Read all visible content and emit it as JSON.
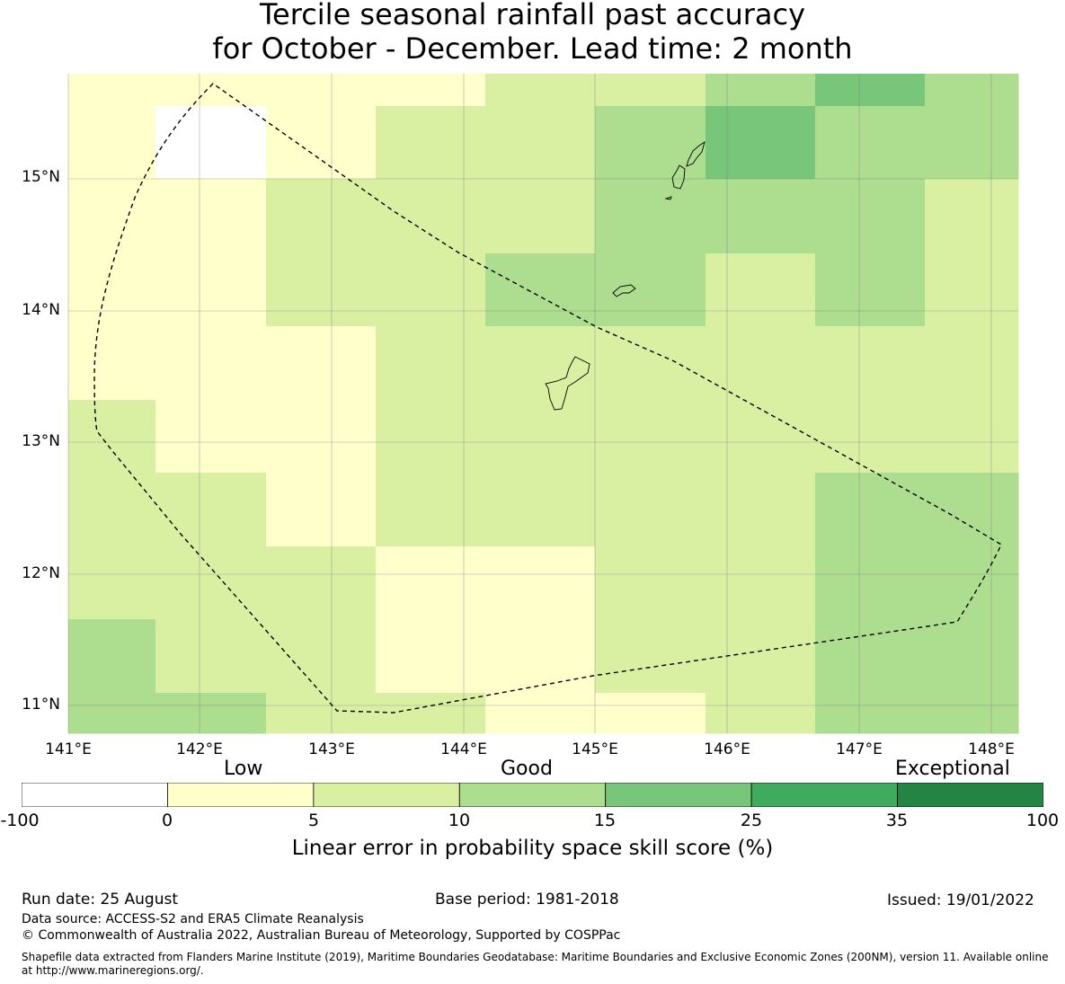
{
  "title": {
    "line1": "Tercile seasonal rainfall past accuracy",
    "line2": "for October - December. Lead time: 2 month"
  },
  "map": {
    "lat_labels": [
      "15°N",
      "14°N",
      "13°N",
      "12°N",
      "11°N"
    ],
    "lon_labels": [
      "141°E",
      "142°E",
      "143°E",
      "144°E",
      "145°E",
      "146°E",
      "147°E",
      "148°E"
    ],
    "lat_values": [
      15,
      14,
      13,
      12,
      11
    ],
    "lon_values": [
      141,
      142,
      143,
      144,
      145,
      146,
      147,
      148
    ],
    "extent": {
      "lon_min": 141.0,
      "lon_max": 148.2,
      "lat_min": 10.8,
      "lat_max": 15.8
    },
    "grid_lines": true,
    "eez_boundary": "dashed black polygon",
    "land_features": [
      "Guam",
      "Rota",
      "Aguijan",
      "Tinian",
      "Saipan"
    ]
  },
  "chart_data": {
    "type": "heatmap",
    "title": "",
    "x": [
      141.33,
      142.17,
      143.0,
      143.83,
      144.67,
      145.5,
      146.33,
      147.17,
      148.0
    ],
    "y": [
      15.67,
      15.28,
      14.72,
      14.17,
      13.61,
      13.06,
      12.5,
      11.94,
      11.39,
      10.96
    ],
    "xlabel": "",
    "ylabel": "",
    "values_class": [
      [
        1,
        1,
        1,
        1,
        2,
        2,
        3,
        4,
        3
      ],
      [
        1,
        0,
        1,
        2,
        2,
        3,
        4,
        3,
        3
      ],
      [
        1,
        1,
        2,
        2,
        2,
        3,
        3,
        3,
        2
      ],
      [
        1,
        1,
        2,
        2,
        3,
        3,
        2,
        3,
        2
      ],
      [
        1,
        1,
        1,
        2,
        2,
        2,
        2,
        2,
        2
      ],
      [
        2,
        1,
        1,
        2,
        2,
        2,
        2,
        2,
        2
      ],
      [
        2,
        2,
        1,
        2,
        2,
        2,
        2,
        3,
        3
      ],
      [
        2,
        2,
        2,
        1,
        1,
        2,
        2,
        3,
        3
      ],
      [
        3,
        2,
        2,
        1,
        1,
        2,
        2,
        3,
        3
      ],
      [
        3,
        3,
        2,
        2,
        1,
        1,
        2,
        3,
        3
      ]
    ],
    "class_ranges": [
      "-100 to 0",
      "0 to 5",
      "5 to 10",
      "10 to 15",
      "15 to 25",
      "25 to 35",
      "35 to 100"
    ],
    "class_colors": [
      "#ffffff",
      "#ffffcc",
      "#d9f0a3",
      "#addd8e",
      "#78c679",
      "#41ab5d",
      "#238443"
    ]
  },
  "legend": {
    "categories": [
      "Low",
      "Good",
      "Exceptional"
    ],
    "ticks": [
      "-100",
      "0",
      "5",
      "10",
      "15",
      "25",
      "35",
      "100"
    ],
    "colors": [
      "#ffffff",
      "#ffffcc",
      "#d9f0a3",
      "#addd8e",
      "#78c679",
      "#41ab5d",
      "#238443"
    ],
    "label": "Linear error in probability space skill score (%)"
  },
  "footer": {
    "run_date": "Run date: 25 August",
    "base_period": "Base period: 1981-2018",
    "issued": "Issued: 19/01/2022",
    "data_source": "Data source: ACCESS-S2 and ERA5 Climate Reanalysis",
    "copyright": "© Commonwealth of Australia 2022, Australian Bureau of Meteorology, Supported by COSPPac",
    "shapefile": "Shapefile data extracted from Flanders Marine Institute (2019), Maritime Boundaries Geodatabase: Maritime Boundaries and Exclusive Economic Zones (200NM), version 11. Available online at http://www.marineregions.org/."
  }
}
